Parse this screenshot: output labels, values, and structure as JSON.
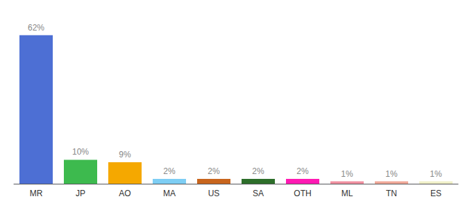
{
  "chart_data": {
    "type": "bar",
    "categories": [
      "MR",
      "JP",
      "AO",
      "MA",
      "US",
      "SA",
      "OTH",
      "ML",
      "TN",
      "ES"
    ],
    "values": [
      62,
      10,
      9,
      2,
      2,
      2,
      2,
      1,
      1,
      1
    ],
    "value_labels": [
      "62%",
      "10%",
      "9%",
      "2%",
      "2%",
      "2%",
      "2%",
      "1%",
      "1%",
      "1%"
    ],
    "colors": [
      "#4d6fd4",
      "#3dba4e",
      "#f5a800",
      "#7ecef4",
      "#c8651d",
      "#2d6e2a",
      "#ff1ab3",
      "#f090a0",
      "#f0a898",
      "#f0f0c8"
    ],
    "ylim": [
      0,
      68
    ],
    "data_labels": true,
    "tick_labels": "x",
    "grid": false
  }
}
